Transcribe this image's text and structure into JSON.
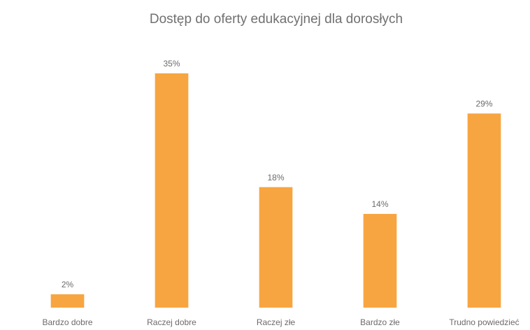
{
  "chart_data": {
    "type": "bar",
    "title": "Dostęp do oferty edukacyjnej dla dorosłych",
    "categories": [
      "Bardzo dobre",
      "Raczej dobre",
      "Raczej złe",
      "Bardzo złe",
      "Trudno powiedzieć"
    ],
    "values": [
      2,
      35,
      18,
      14,
      29
    ],
    "value_labels": [
      "2%",
      "35%",
      "18%",
      "14%",
      "29%"
    ],
    "color": "#f7a541",
    "ylim": [
      0,
      40
    ]
  }
}
